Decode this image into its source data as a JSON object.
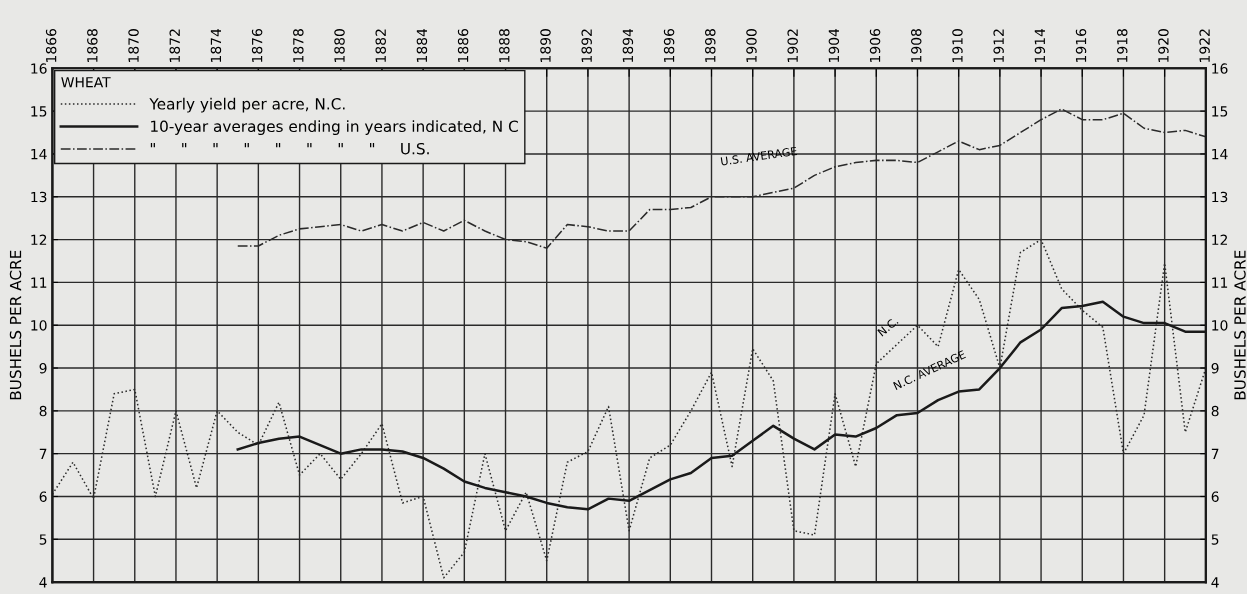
{
  "chart_data": {
    "type": "line",
    "legend_title": "WHEAT",
    "ylabel": "BUSHELS PER ACRE",
    "y2label": "BUSHELS PER ACRE",
    "legend": "top left",
    "grid": true,
    "marker": "none",
    "xlim": [
      1866,
      1922
    ],
    "xticks": [
      1866,
      1868,
      1870,
      1872,
      1874,
      1876,
      1878,
      1880,
      1882,
      1884,
      1886,
      1888,
      1890,
      1892,
      1894,
      1896,
      1898,
      1900,
      1902,
      1904,
      1906,
      1908,
      1910,
      1912,
      1914,
      1916,
      1918,
      1920,
      1922
    ],
    "ylim": [
      4,
      16
    ],
    "yticks": [
      4,
      5,
      6,
      7,
      8,
      9,
      10,
      11,
      12,
      13,
      14,
      15,
      16
    ],
    "y2lim": [
      4,
      16
    ],
    "y2ticks": [
      4,
      5,
      6,
      7,
      8,
      9,
      10,
      11,
      12,
      13,
      14,
      15,
      16
    ],
    "series": [
      {
        "name": "Yearly yield per acre, N.C.",
        "color": "#2a2a2a",
        "line_style": "dotted",
        "x": [
          1866,
          1867,
          1868,
          1869,
          1870,
          1871,
          1872,
          1873,
          1874,
          1875,
          1876,
          1877,
          1878,
          1879,
          1880,
          1881,
          1882,
          1883,
          1884,
          1885,
          1886,
          1887,
          1888,
          1889,
          1890,
          1891,
          1892,
          1893,
          1894,
          1895,
          1896,
          1897,
          1898,
          1899,
          1900,
          1901,
          1902,
          1903,
          1904,
          1905,
          1906,
          1907,
          1908,
          1909,
          1910,
          1911,
          1912,
          1913,
          1914,
          1915,
          1916,
          1917,
          1918,
          1919,
          1920,
          1921,
          1922
        ],
        "values": [
          6.05,
          6.8,
          5.95,
          8.4,
          8.5,
          6.0,
          8.0,
          6.2,
          8.0,
          7.5,
          7.2,
          8.2,
          6.5,
          7.0,
          6.4,
          7.0,
          7.7,
          5.85,
          6.0,
          4.1,
          4.7,
          7.0,
          5.2,
          6.1,
          4.5,
          6.8,
          7.05,
          8.1,
          5.2,
          6.9,
          7.2,
          8.0,
          8.9,
          6.7,
          9.45,
          8.7,
          5.2,
          5.1,
          8.4,
          6.7,
          9.1,
          9.55,
          10.0,
          9.5,
          11.3,
          10.6,
          9.0,
          11.7,
          12.0,
          10.85,
          10.35,
          9.95,
          7.0,
          7.9,
          11.45,
          7.5,
          9.0
        ]
      },
      {
        "name": "10-year averages ending in years indicated, N C",
        "color": "#1a1a1a",
        "line_style": "solid",
        "x": [
          1875,
          1876,
          1877,
          1878,
          1879,
          1880,
          1881,
          1882,
          1883,
          1884,
          1885,
          1886,
          1887,
          1888,
          1889,
          1890,
          1891,
          1892,
          1893,
          1894,
          1895,
          1896,
          1897,
          1898,
          1899,
          1900,
          1901,
          1902,
          1903,
          1904,
          1905,
          1906,
          1907,
          1908,
          1909,
          1910,
          1911,
          1912,
          1913,
          1914,
          1915,
          1916,
          1917,
          1918,
          1919,
          1920,
          1921,
          1922
        ],
        "values": [
          7.1,
          7.25,
          7.35,
          7.4,
          7.2,
          7.0,
          7.1,
          7.1,
          7.05,
          6.9,
          6.65,
          6.35,
          6.2,
          6.1,
          6.0,
          5.85,
          5.75,
          5.7,
          5.95,
          5.9,
          6.15,
          6.4,
          6.55,
          6.9,
          6.95,
          7.3,
          7.65,
          7.35,
          7.1,
          7.45,
          7.4,
          7.6,
          7.9,
          7.95,
          8.25,
          8.45,
          8.5,
          9.0,
          9.6,
          9.9,
          10.4,
          10.45,
          10.55,
          10.2,
          10.05,
          10.05,
          9.85,
          9.85
        ]
      },
      {
        "name": "\"     \"     \"     \"     \"     \"     \"     \"     U.S.",
        "color": "#2a2a2a",
        "line_style": "dashdot",
        "x": [
          1875,
          1876,
          1877,
          1878,
          1879,
          1880,
          1881,
          1882,
          1883,
          1884,
          1885,
          1886,
          1887,
          1888,
          1889,
          1890,
          1891,
          1892,
          1893,
          1894,
          1895,
          1896,
          1897,
          1898,
          1899,
          1900,
          1901,
          1902,
          1903,
          1904,
          1905,
          1906,
          1907,
          1908,
          1909,
          1910,
          1911,
          1912,
          1913,
          1914,
          1915,
          1916,
          1917,
          1918,
          1919,
          1920,
          1921,
          1922
        ],
        "values": [
          11.85,
          11.85,
          12.1,
          12.25,
          12.3,
          12.35,
          12.2,
          12.35,
          12.2,
          12.4,
          12.2,
          12.45,
          12.2,
          12.0,
          11.95,
          11.8,
          12.35,
          12.3,
          12.2,
          12.2,
          12.7,
          12.7,
          12.75,
          13.0,
          13.0,
          13.0,
          13.1,
          13.2,
          13.5,
          13.7,
          13.8,
          13.85,
          13.85,
          13.8,
          14.05,
          14.3,
          14.1,
          14.2,
          14.5,
          14.8,
          15.05,
          14.8,
          14.8,
          14.95,
          14.6,
          14.5,
          14.55,
          14.4
        ]
      }
    ],
    "annotations": [
      {
        "text": "U.S. AVERAGE",
        "x": 1903,
        "y": 13.35
      },
      {
        "text": "N.C.",
        "x": 1907,
        "y": 9.55
      },
      {
        "text": "N.C. AVERAGE",
        "x": 1909,
        "y": 8.3
      }
    ]
  }
}
